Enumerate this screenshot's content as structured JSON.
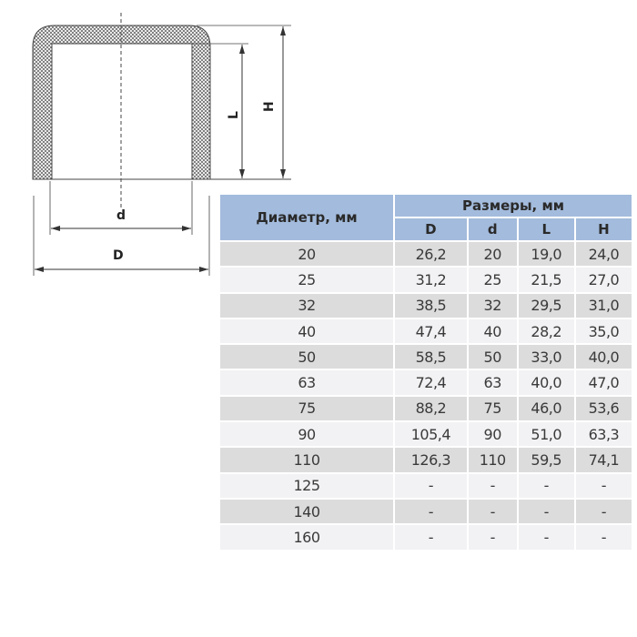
{
  "drawing": {
    "labels": {
      "d": "d",
      "D": "D",
      "L": "L",
      "H": "H"
    }
  },
  "table": {
    "header_diameter": "Диаметр, мм",
    "header_sizes": "Размеры, мм",
    "columns": [
      "D",
      "d",
      "L",
      "H"
    ],
    "rows": [
      {
        "diameter": "20",
        "D": "26,2",
        "d": "20",
        "L": "19,0",
        "H": "24,0"
      },
      {
        "diameter": "25",
        "D": "31,2",
        "d": "25",
        "L": "21,5",
        "H": "27,0"
      },
      {
        "diameter": "32",
        "D": "38,5",
        "d": "32",
        "L": "29,5",
        "H": "31,0"
      },
      {
        "diameter": "40",
        "D": "47,4",
        "d": "40",
        "L": "28,2",
        "H": "35,0"
      },
      {
        "diameter": "50",
        "D": "58,5",
        "d": "50",
        "L": "33,0",
        "H": "40,0"
      },
      {
        "diameter": "63",
        "D": "72,4",
        "d": "63",
        "L": "40,0",
        "H": "47,0"
      },
      {
        "diameter": "75",
        "D": "88,2",
        "d": "75",
        "L": "46,0",
        "H": "53,6"
      },
      {
        "diameter": "90",
        "D": "105,4",
        "d": "90",
        "L": "51,0",
        "H": "63,3"
      },
      {
        "diameter": "110",
        "D": "126,3",
        "d": "110",
        "L": "59,5",
        "H": "74,1"
      },
      {
        "diameter": "125",
        "D": "-",
        "d": "-",
        "L": "-",
        "H": "-"
      },
      {
        "diameter": "140",
        "D": "-",
        "d": "-",
        "L": "-",
        "H": "-"
      },
      {
        "diameter": "160",
        "D": "-",
        "d": "-",
        "L": "-",
        "H": "-"
      }
    ]
  }
}
